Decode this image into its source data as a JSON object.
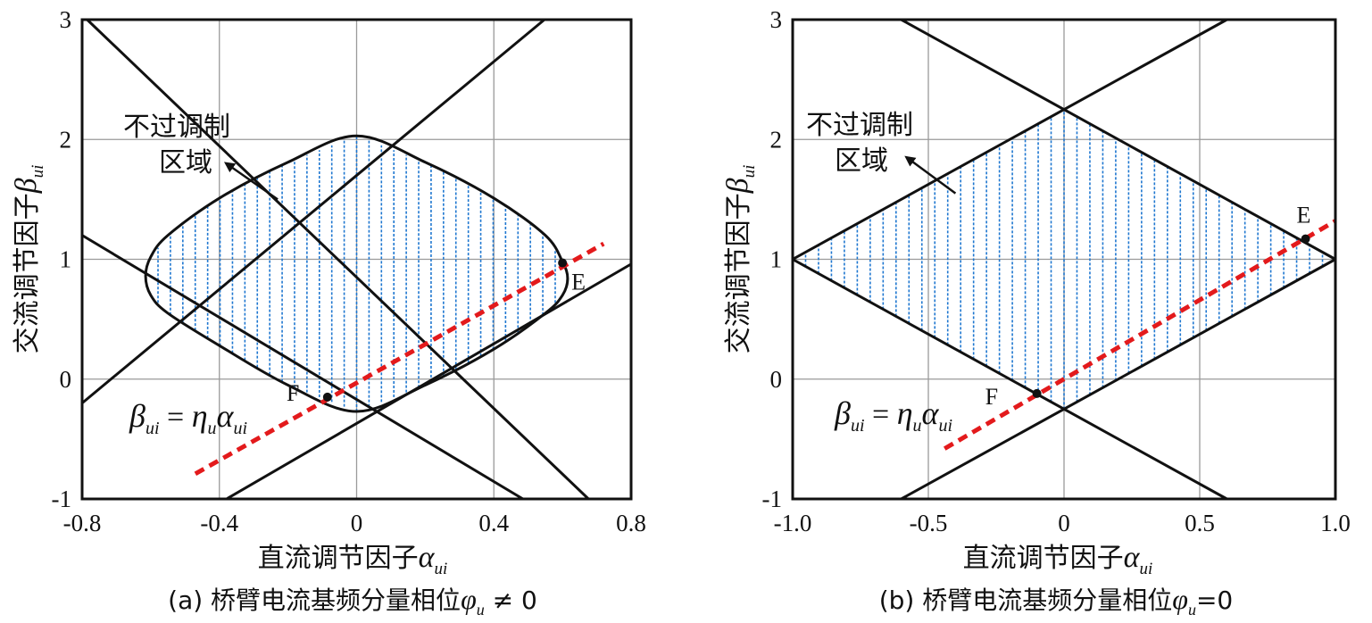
{
  "chart_data": [
    {
      "type": "area",
      "panel": "a",
      "caption": "(a) 桥臂电流基频分量相位φu ≠ 0",
      "caption_text": "(a) 桥臂电流基频分量相位",
      "caption_sym": "φ",
      "caption_sub": "u",
      "caption_rel": " ≠ 0",
      "xlabel": "直流调节因子αui",
      "xlabel_text": "直流调节因子",
      "xlabel_sym": "α",
      "xlabel_sub": "ui",
      "ylabel": "交流调节因子βui",
      "ylabel_text": "交流调节因子",
      "ylabel_sym": "β",
      "ylabel_sub": "ui",
      "xlim": [
        -0.8,
        0.8
      ],
      "ylim": [
        -1,
        3
      ],
      "xticks": [
        -0.8,
        -0.4,
        0,
        0.4,
        0.8
      ],
      "xtick_labels": [
        "-0.8",
        "-0.4",
        "0",
        "0.4",
        "0.8"
      ],
      "yticks": [
        -1,
        0,
        1,
        2,
        3
      ],
      "ytick_labels": [
        "-1",
        "0",
        "1",
        "2",
        "3"
      ],
      "grid": true,
      "boundary_lines": [
        {
          "name": "upper-falling",
          "x": [
            -0.8,
            0.8
          ],
          "y": [
            3.04,
            -1.34
          ]
        },
        {
          "name": "upper-rising",
          "x": [
            -0.8,
            0.8
          ],
          "y": [
            -0.2,
            3.6
          ]
        },
        {
          "name": "lower-falling",
          "x": [
            -0.8,
            0.8
          ],
          "y": [
            1.2,
            -1.54
          ]
        },
        {
          "name": "lower-rising",
          "x": [
            -0.8,
            0.8
          ],
          "y": [
            -1.7,
            0.96
          ]
        }
      ],
      "region_boundary": [
        [
          0.0,
          2.03
        ],
        [
          0.2,
          1.81
        ],
        [
          0.4,
          1.51
        ],
        [
          0.55,
          1.2
        ],
        [
          0.6,
          0.98
        ],
        [
          0.615,
          0.84
        ],
        [
          0.6,
          0.7
        ],
        [
          0.55,
          0.55
        ],
        [
          0.4,
          0.25
        ],
        [
          0.2,
          -0.05
        ],
        [
          0.0,
          -0.27
        ],
        [
          -0.2,
          -0.05
        ],
        [
          -0.4,
          0.28
        ],
        [
          -0.55,
          0.55
        ],
        [
          -0.6,
          0.7
        ],
        [
          -0.615,
          0.86
        ],
        [
          -0.6,
          1.02
        ],
        [
          -0.55,
          1.2
        ],
        [
          -0.4,
          1.51
        ],
        [
          -0.2,
          1.81
        ]
      ],
      "region_label": "不过调制区域",
      "region_label_lines": [
        "不过调制",
        "区域"
      ],
      "arrow": {
        "from": [
          -0.23,
          1.5
        ],
        "to": [
          -0.38,
          1.8
        ]
      },
      "line": {
        "label": "βui = ηuαui",
        "x": [
          -0.47,
          0.72
        ],
        "y": [
          -0.79,
          1.13
        ],
        "color": "#e31a1c"
      },
      "line_label": {
        "lhs_sym": "β",
        "lhs_sub": "ui",
        "eq": " = ",
        "mid_sym": "η",
        "mid_sub": "u",
        "rhs_sym": "α",
        "rhs_sub": "ui"
      },
      "points": [
        {
          "label": "E",
          "x": 0.6,
          "y": 0.97
        },
        {
          "label": "F",
          "x": -0.085,
          "y": -0.15
        }
      ],
      "hatch_color": "#1f77d0"
    },
    {
      "type": "area",
      "panel": "b",
      "caption": "(b) 桥臂电流基频分量相位φu=0",
      "caption_text": "(b) 桥臂电流基频分量相位",
      "caption_sym": "φ",
      "caption_sub": "u",
      "caption_rel": "=0",
      "xlabel": "直流调节因子αui",
      "xlabel_text": "直流调节因子",
      "xlabel_sym": "α",
      "xlabel_sub": "ui",
      "ylabel": "交流调节因子βui",
      "ylabel_text": "交流调节因子",
      "ylabel_sym": "β",
      "ylabel_sub": "ui",
      "xlim": [
        -1.0,
        1.0
      ],
      "ylim": [
        -1,
        3
      ],
      "xticks": [
        -1.0,
        -0.5,
        0,
        0.5,
        1.0
      ],
      "xtick_labels": [
        "-1.0",
        "-0.5",
        "0",
        "0.5",
        "1.0"
      ],
      "yticks": [
        -1,
        0,
        1,
        2,
        3
      ],
      "ytick_labels": [
        "-1",
        "0",
        "1",
        "2",
        "3"
      ],
      "grid": true,
      "boundary_lines": [
        {
          "name": "upper-falling",
          "x": [
            -1.0,
            1.0
          ],
          "y": [
            3.5,
            1.0
          ]
        },
        {
          "name": "upper-rising",
          "x": [
            -1.0,
            1.0
          ],
          "y": [
            1.0,
            3.5
          ]
        },
        {
          "name": "lower-falling",
          "x": [
            -1.0,
            1.0
          ],
          "y": [
            1.0,
            -1.5
          ]
        },
        {
          "name": "lower-rising",
          "x": [
            -1.0,
            1.0
          ],
          "y": [
            -1.5,
            1.0
          ]
        }
      ],
      "region_boundary": [
        [
          0.0,
          2.25
        ],
        [
          1.0,
          1.0
        ],
        [
          0.0,
          -0.25
        ],
        [
          -1.0,
          1.0
        ]
      ],
      "region_label": "不过调制区域",
      "region_label_lines": [
        "不过调制",
        "区域"
      ],
      "arrow": {
        "from": [
          -0.4,
          1.55
        ],
        "to": [
          -0.58,
          1.85
        ]
      },
      "line": {
        "label": "βui = ηuαui",
        "x": [
          -0.44,
          1.0
        ],
        "y": [
          -0.58,
          1.32
        ],
        "color": "#e31a1c"
      },
      "line_label": {
        "lhs_sym": "β",
        "lhs_sub": "ui",
        "eq": " = ",
        "mid_sym": "η",
        "mid_sub": "u",
        "rhs_sym": "α",
        "rhs_sub": "ui"
      },
      "points": [
        {
          "label": "E",
          "x": 0.89,
          "y": 1.17
        },
        {
          "label": "F",
          "x": -0.1,
          "y": -0.12
        }
      ],
      "hatch_color": "#1f77d0"
    }
  ]
}
